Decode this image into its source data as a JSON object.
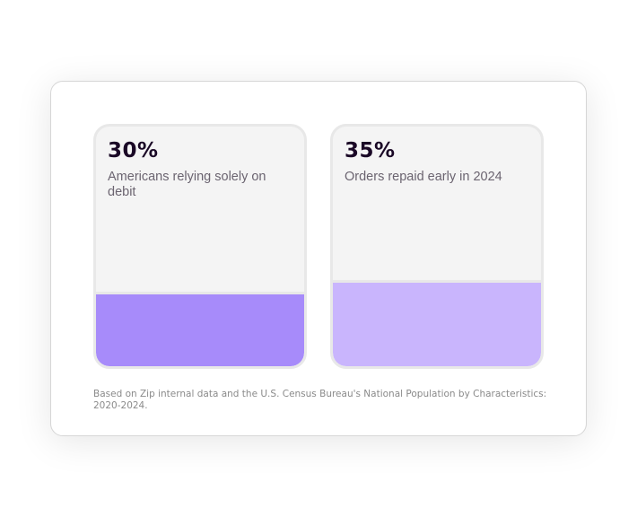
{
  "stats": [
    {
      "value": "30%",
      "percent": 30,
      "label": "Americans relying solely on debit",
      "color": "#a78bfa"
    },
    {
      "value": "35%",
      "percent": 35,
      "label": "Orders repaid early in 2024",
      "color": "#c9b5fd"
    }
  ],
  "footnote": "Based on Zip internal data and the U.S. Census Bureau's National Population by Characteristics: 2020-2024."
}
